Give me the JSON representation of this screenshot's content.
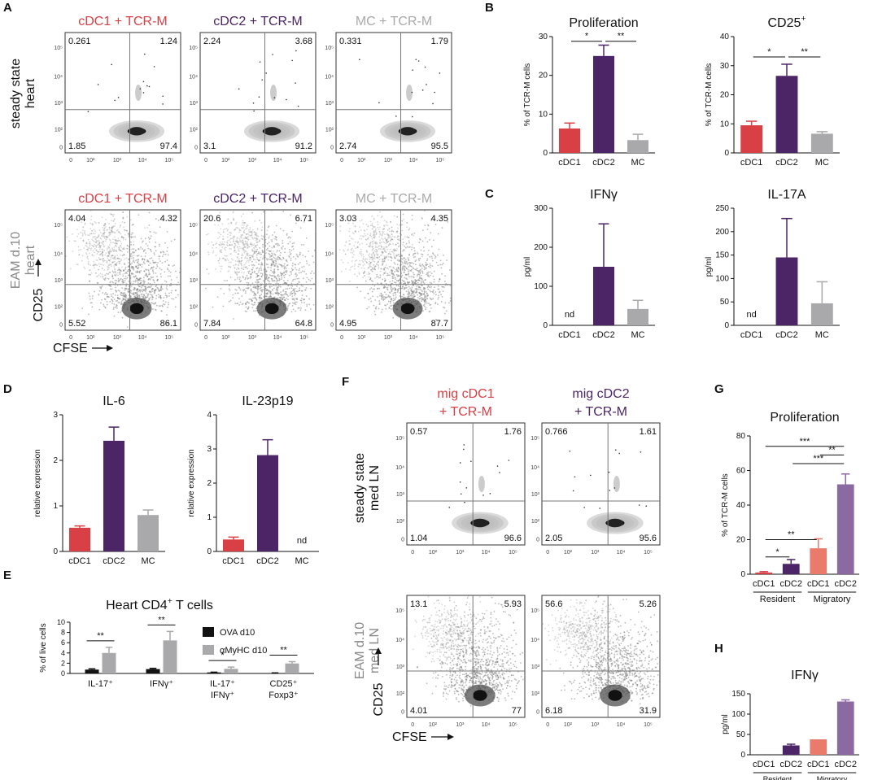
{
  "colors": {
    "cdc1": "#d84045",
    "cdc2": "#4b2566",
    "mc": "#a9a9ab",
    "mig_cdc1": "#ea7a6c",
    "mig_cdc2": "#8b6aa1",
    "ova": "#111111",
    "amyhc": "#a9a9ab",
    "gate": "#777777"
  },
  "panels": {
    "A": "A",
    "B": "B",
    "C": "C",
    "D": "D",
    "E": "E",
    "F": "F",
    "G": "G",
    "H": "H"
  },
  "flowA": {
    "cols": [
      "cDC1 + TCR-M",
      "cDC2 + TCR-M",
      "MC + TCR-M"
    ],
    "row1_label": [
      "steady state",
      "heart"
    ],
    "row2_label": [
      "EAM d.10",
      "heart"
    ],
    "yaxis": "CD25",
    "xaxis": "CFSE",
    "x_ticks": [
      "0",
      "10²",
      "10³",
      "10⁴",
      "10⁵"
    ],
    "y_ticks": [
      "0",
      "10²",
      "10³",
      "10⁴",
      "10⁵"
    ],
    "steady_quadrants": [
      [
        "0.261",
        "1.24",
        "1.85",
        "97.4"
      ],
      [
        "2.24",
        "3.68",
        "3.1",
        "91.2"
      ],
      [
        "0.331",
        "1.79",
        "2.74",
        "95.5"
      ]
    ],
    "eam_quadrants": [
      [
        "4.04",
        "4.32",
        "5.52",
        "86.1"
      ],
      [
        "20.6",
        "6.71",
        "7.84",
        "64.8"
      ],
      [
        "3.03",
        "4.35",
        "4.95",
        "87.7"
      ]
    ]
  },
  "flowF": {
    "cols": [
      [
        "mig cDC1",
        "+ TCR-M"
      ],
      [
        "mig cDC2",
        "+ TCR-M"
      ]
    ],
    "row1_label": [
      "steady state",
      "med LN"
    ],
    "row2_label": [
      "EAM d.10",
      "med LN"
    ],
    "yaxis": "CD25",
    "xaxis": "CFSE",
    "steady_quadrants": [
      [
        "0.57",
        "1.76",
        "1.04",
        "96.6"
      ],
      [
        "0.766",
        "1.61",
        "2.05",
        "95.6"
      ]
    ],
    "eam_quadrants": [
      [
        "13.1",
        "5.93",
        "4.01",
        "77"
      ],
      [
        "56.6",
        "5.26",
        "6.18",
        "31.9"
      ]
    ]
  },
  "chart_data": [
    {
      "panel": "B",
      "type": "bar",
      "title": "Proliferation",
      "ylabel": "% of TCR-M cells",
      "categories": [
        "cDC1",
        "cDC2",
        "MC"
      ],
      "values": [
        6.3,
        25.0,
        3.3
      ],
      "errors": [
        1.4,
        2.8,
        1.5
      ],
      "ylim": [
        0,
        30
      ],
      "yticks": [
        "0",
        "10",
        "20",
        "30"
      ],
      "colors": [
        "#d84045",
        "#4b2566",
        "#a9a9ab"
      ],
      "sig": [
        {
          "a": 0,
          "b": 1,
          "label": "*"
        },
        {
          "a": 1,
          "b": 2,
          "label": "**"
        }
      ]
    },
    {
      "panel": "B",
      "type": "bar",
      "title": "CD25",
      "title_sup": "+",
      "ylabel": "% of TCR-M cells",
      "categories": [
        "cDC1",
        "cDC2",
        "MC"
      ],
      "values": [
        9.5,
        26.5,
        6.6
      ],
      "errors": [
        1.4,
        4.0,
        0.7
      ],
      "ylim": [
        0,
        40
      ],
      "yticks": [
        "0",
        "10",
        "20",
        "30",
        "40"
      ],
      "colors": [
        "#d84045",
        "#4b2566",
        "#a9a9ab"
      ],
      "sig": [
        {
          "a": 0,
          "b": 1,
          "label": "*"
        },
        {
          "a": 1,
          "b": 2,
          "label": "**"
        }
      ]
    },
    {
      "panel": "C",
      "type": "bar",
      "title": "IFNγ",
      "ylabel": "pg/ml",
      "categories": [
        "cDC1",
        "cDC2",
        "MC"
      ],
      "values": [
        0,
        150,
        42
      ],
      "errors": [
        0,
        110,
        22
      ],
      "ylim": [
        0,
        300
      ],
      "yticks": [
        "0",
        "100",
        "200",
        "300"
      ],
      "colors": [
        "#d84045",
        "#4b2566",
        "#a9a9ab"
      ],
      "nd": [
        0
      ],
      "nd_label": "nd"
    },
    {
      "panel": "C",
      "type": "bar",
      "title": "IL-17A",
      "ylabel": "pg/ml",
      "categories": [
        "cDC1",
        "cDC2",
        "MC"
      ],
      "values": [
        0,
        145,
        47
      ],
      "errors": [
        0,
        83,
        46
      ],
      "ylim": [
        0,
        250
      ],
      "yticks": [
        "0",
        "50",
        "100",
        "150",
        "200",
        "250"
      ],
      "colors": [
        "#d84045",
        "#4b2566",
        "#a9a9ab"
      ],
      "nd": [
        0
      ],
      "nd_label": "nd"
    },
    {
      "panel": "D",
      "type": "bar",
      "title": "IL-6",
      "ylabel": "relative expression",
      "categories": [
        "cDC1",
        "cDC2",
        "MC"
      ],
      "values": [
        0.52,
        2.43,
        0.8
      ],
      "errors": [
        0.04,
        0.3,
        0.11
      ],
      "ylim": [
        0,
        3
      ],
      "yticks": [
        "0",
        "1",
        "2",
        "3"
      ],
      "colors": [
        "#d84045",
        "#4b2566",
        "#a9a9ab"
      ]
    },
    {
      "panel": "D",
      "type": "bar",
      "title": "IL-23p19",
      "ylabel": "relative expression",
      "categories": [
        "cDC1",
        "cDC2",
        "MC"
      ],
      "values": [
        0.35,
        2.82,
        0
      ],
      "errors": [
        0.07,
        0.45,
        0
      ],
      "ylim": [
        0,
        4
      ],
      "yticks": [
        "0",
        "1",
        "2",
        "3",
        "4"
      ],
      "colors": [
        "#d84045",
        "#4b2566",
        "#a9a9ab"
      ],
      "nd": [
        2
      ],
      "nd_label": "nd"
    },
    {
      "panel": "E",
      "type": "bar",
      "title": "Heart CD4",
      "title_sup": "+",
      "title_tail": "T cells",
      "ylabel": "% of live cells",
      "categories": [
        "IL-17⁺",
        "IFNγ⁺",
        "IL-17⁺ IFNγ⁺",
        "CD25⁺ Foxp3⁺"
      ],
      "series": [
        {
          "name": "OVA d10",
          "values": [
            0.75,
            0.85,
            0.2,
            0.08
          ],
          "errors": [
            0.15,
            0.15,
            0.05,
            0.03
          ],
          "color": "#111111"
        },
        {
          "name": "αMyHC d10",
          "values": [
            4.0,
            6.45,
            0.9,
            1.95
          ],
          "errors": [
            1.1,
            1.75,
            0.35,
            0.35
          ],
          "color": "#a9a9ab"
        }
      ],
      "ylim": [
        0,
        10
      ],
      "yticks": [
        "0",
        "2",
        "4",
        "6",
        "8",
        "10"
      ],
      "sig": [
        "**",
        "**",
        "*",
        "**"
      ],
      "legend": "top-right"
    },
    {
      "panel": "G",
      "type": "bar",
      "title": "Proliferation",
      "ylabel": "% of TCR-M cells",
      "categories": [
        "cDC1",
        "cDC2",
        "cDC1",
        "cDC2"
      ],
      "groups": [
        "Resident",
        "Migratory"
      ],
      "values": [
        1,
        6,
        15,
        52
      ],
      "errors": [
        0.5,
        2.5,
        5.5,
        6.0
      ],
      "ylim": [
        0,
        80
      ],
      "yticks": [
        "0",
        "20",
        "40",
        "60",
        "80"
      ],
      "colors": [
        "#d84045",
        "#4b2566",
        "#ea7a6c",
        "#8b6aa1"
      ],
      "sig": [
        {
          "a": 0,
          "b": 1,
          "label": "*"
        },
        {
          "a": 0,
          "b": 2,
          "label": "**"
        },
        {
          "a": 1,
          "b": 3,
          "label": "***"
        },
        {
          "a": 2,
          "b": 3,
          "label": "**"
        },
        {
          "a": 0,
          "b": 3,
          "label": "***"
        }
      ]
    },
    {
      "panel": "H",
      "type": "bar",
      "title": "IFNγ",
      "ylabel": "pg/ml",
      "categories": [
        "cDC1",
        "cDC2",
        "cDC1",
        "cDC2"
      ],
      "groups": [
        "Resident",
        "Migratory"
      ],
      "values": [
        0,
        23,
        38,
        131
      ],
      "errors": [
        0,
        3,
        0,
        4
      ],
      "ylim": [
        0,
        150
      ],
      "yticks": [
        "0",
        "50",
        "100",
        "150"
      ],
      "colors": [
        "#d84045",
        "#4b2566",
        "#ea7a6c",
        "#8b6aa1"
      ]
    }
  ]
}
